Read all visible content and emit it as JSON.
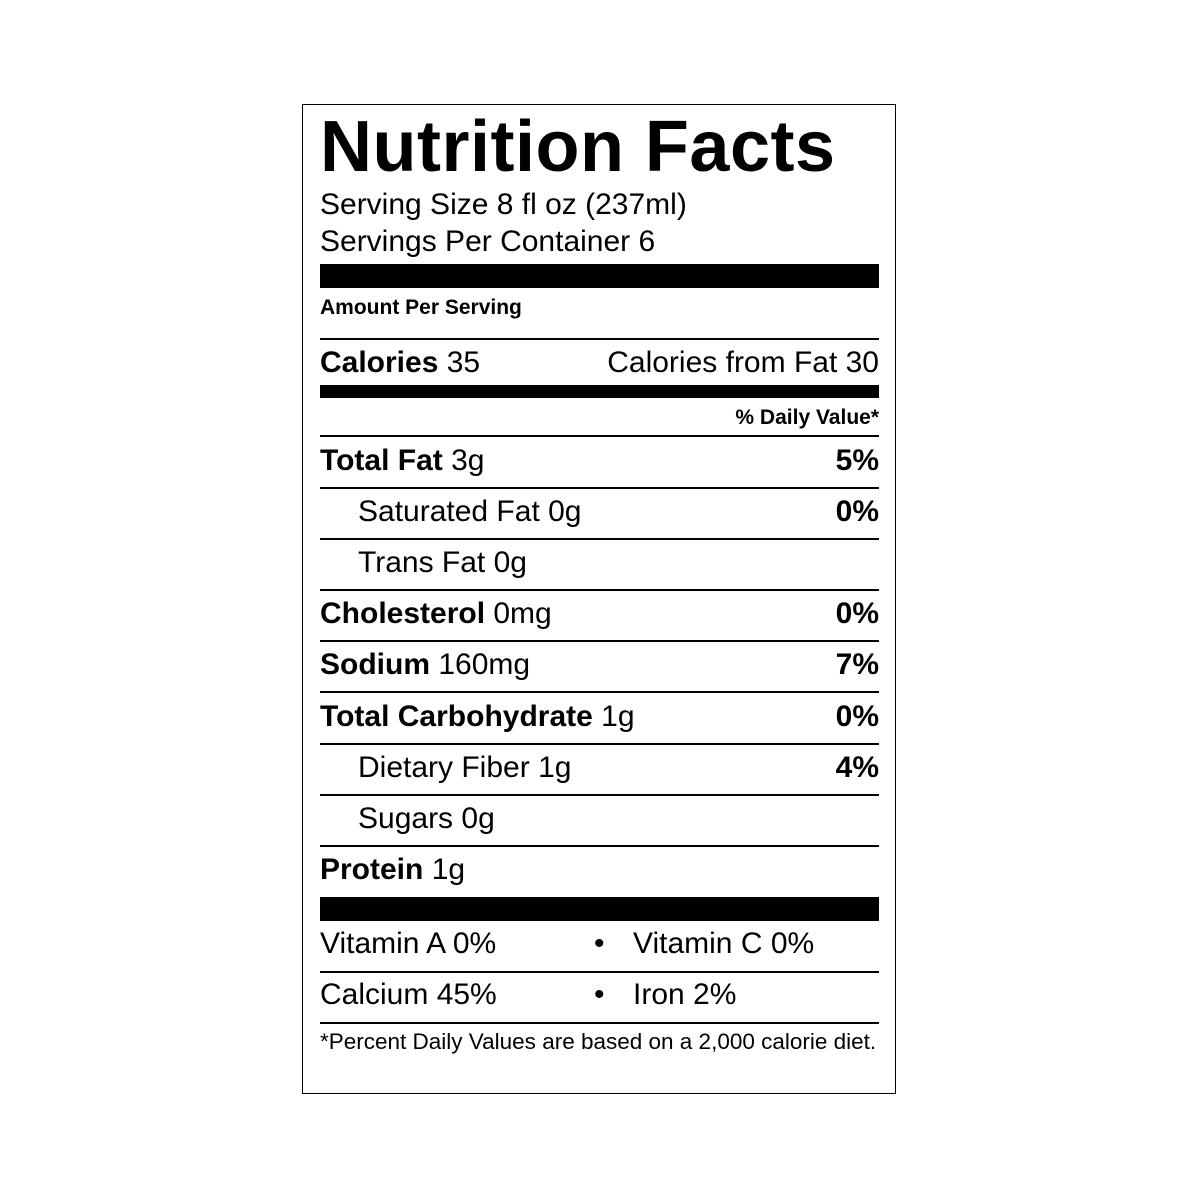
{
  "title": "Nutrition Facts",
  "serving_size": "Serving Size 8 fl oz (237ml)",
  "servings_per_container": "Servings Per Container 6",
  "amount_per_serving": "Amount Per Serving",
  "calories": {
    "label": "Calories",
    "value": "35",
    "from_fat": "Calories from Fat 30"
  },
  "daily_value_header": "% Daily Value*",
  "nutrients": [
    {
      "label": "Total Fat",
      "amount": "3g",
      "dv": "5%"
    },
    {
      "label": "Saturated Fat",
      "amount": "0g",
      "dv": "0%"
    },
    {
      "label": "Trans Fat",
      "amount": "0g",
      "dv": ""
    },
    {
      "label": "Cholesterol",
      "amount": "0mg",
      "dv": "0%"
    },
    {
      "label": "Sodium",
      "amount": "160mg",
      "dv": "7%"
    },
    {
      "label": "Total Carbohydrate",
      "amount": "1g",
      "dv": "0%"
    },
    {
      "label": "Dietary Fiber",
      "amount": "1g",
      "dv": "4%"
    },
    {
      "label": "Sugars",
      "amount": "0g",
      "dv": ""
    },
    {
      "label": "Protein",
      "amount": "1g",
      "dv": ""
    }
  ],
  "vitamins": [
    {
      "left": "Vitamin A 0%",
      "right": "Vitamin C 0%"
    },
    {
      "left": "Calcium 45%",
      "right": "Iron 2%"
    }
  ],
  "bullet": "•",
  "footnote": "*Percent Daily Values are based on a 2,000 calorie diet."
}
